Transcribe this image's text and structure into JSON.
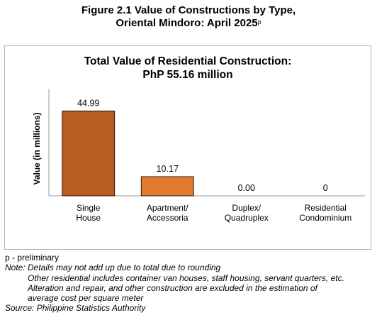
{
  "figure": {
    "title_line1": "Figure 2.1 Value of Constructions by Type,",
    "title_line2": "Oriental Mindoro: April 2025",
    "title_sup": "p"
  },
  "chart_data": {
    "type": "bar",
    "title_line1": "Total Value of Residential Construction:",
    "title_line2": "PhP 55.16 million",
    "ylabel": "Value (in millions)",
    "xlabel": "",
    "categories": [
      [
        "Single",
        "House"
      ],
      [
        "Apartment/",
        "Accessoria"
      ],
      [
        "Duplex/",
        "Quadruplex"
      ],
      [
        "Residential",
        "Condominium"
      ]
    ],
    "values": [
      44.99,
      10.17,
      0.0,
      0
    ],
    "data_labels": [
      "44.99",
      "10.17",
      "0.00",
      "0"
    ],
    "ylim": [
      0,
      50
    ],
    "grid": false,
    "colors": [
      "#b85c22",
      "#e27a30",
      "#e27a30",
      "#e27a30"
    ]
  },
  "notes": {
    "preliminary": "p - preliminary",
    "note_line1": "Note: Details may not add up due to total due to rounding",
    "note_line2": "Other residential includes container van houses, staff housing, servant quarters, etc.",
    "note_line3": "Alteration and repair, and other construction are excluded in the estimation of",
    "note_line4": "average cost per square meter",
    "source": "Source: Philippine Statistics Authority"
  }
}
